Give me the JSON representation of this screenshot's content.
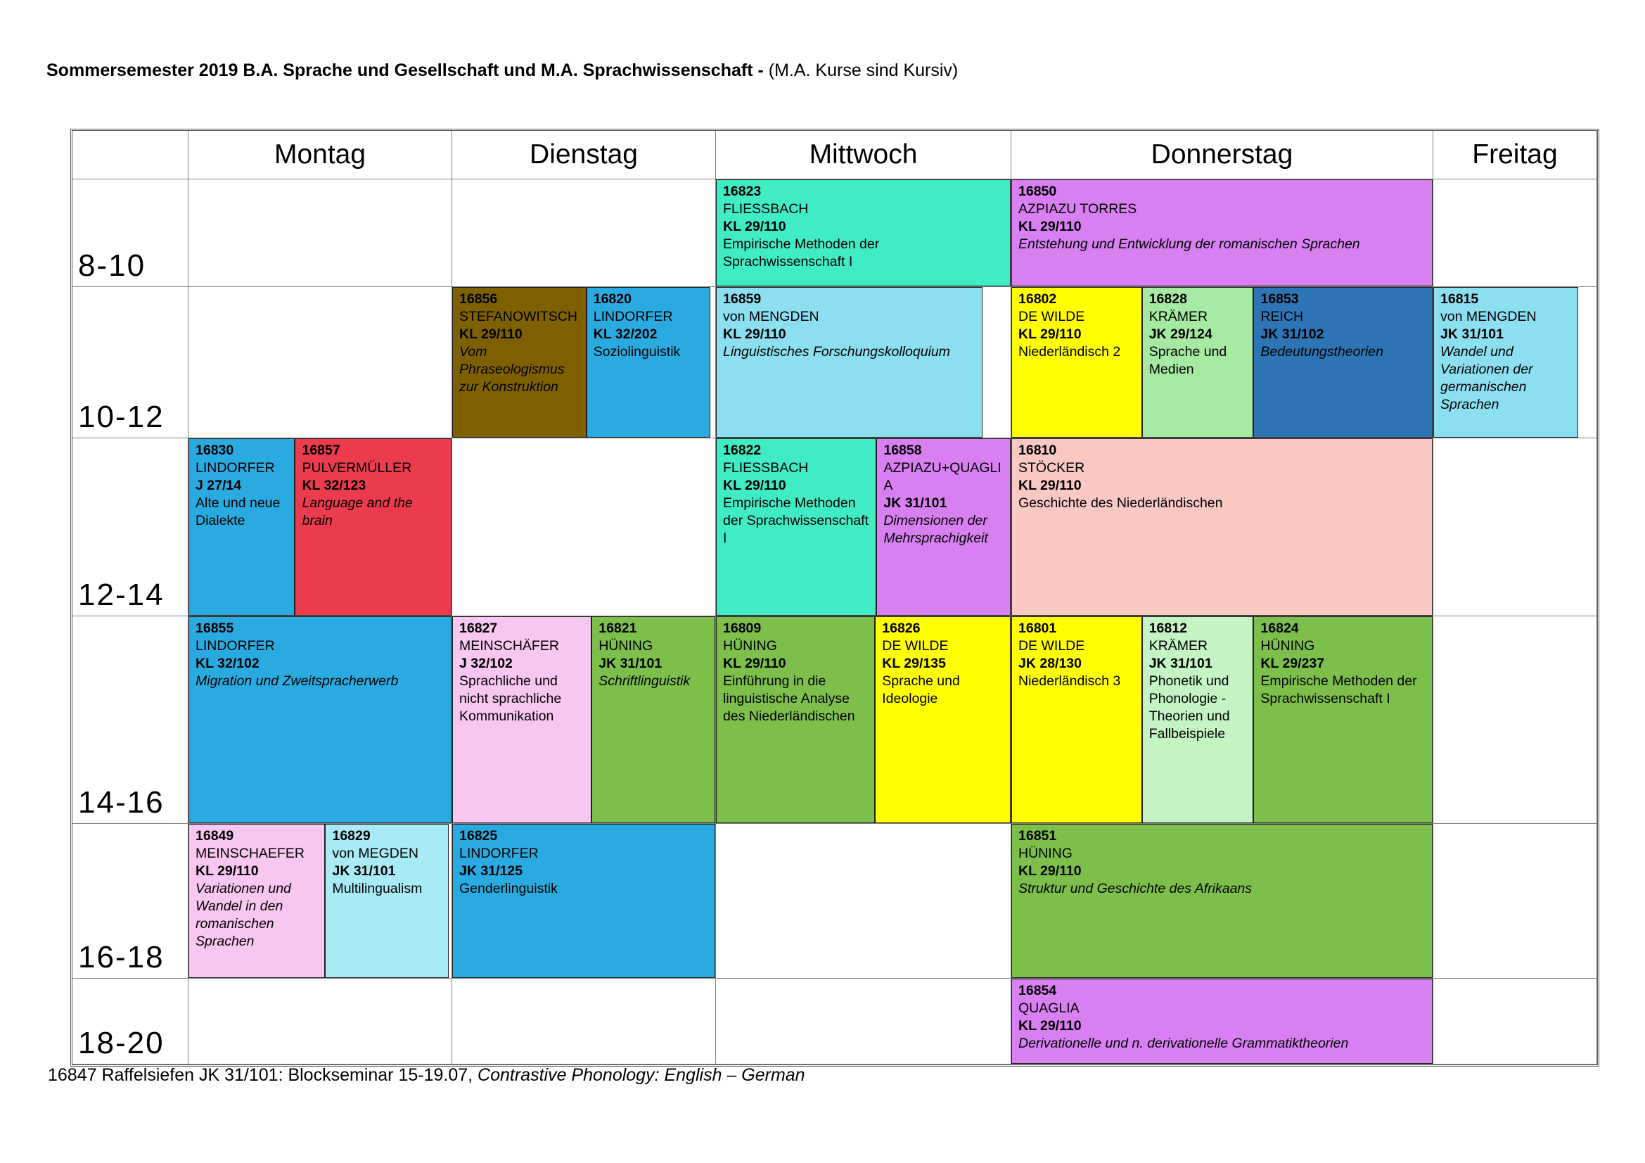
{
  "page": {
    "title_bold": "Sommersemester 2019 B.A. Sprache und Gesellschaft und M.A. Sprachwissenschaft -",
    "title_normal": "(M.A. Kurse sind Kursiv)",
    "footnote_normal": "16847 Raffelsiefen JK 31/101: Blockseminar 15-19.07,",
    "footnote_italic": "Contrastive Phonology: English – German"
  },
  "colors": {
    "turquoise": "#40ECC4",
    "violet": "#D880F2",
    "brown": "#7F6000",
    "blue": "#29ABE2",
    "skyblue": "#8BDFF0",
    "lightcyan": "#A9EBF5",
    "yellow": "#FFFF00",
    "lightgreen": "#A6E9A1",
    "palegreen": "#C4F4C4",
    "darkblue": "#2E75B6",
    "red": "#EC3B4D",
    "salmon": "#F9C8C3",
    "green": "#7DBF4B",
    "pink": "#F7C7F0"
  },
  "schedule": {
    "days": [
      "Montag",
      "Dienstag",
      "Mittwoch",
      "Donnerstag",
      "Freitag"
    ],
    "time_slots": [
      "8-10",
      "10-12",
      "12-14",
      "14-16",
      "16-18",
      "18-20"
    ],
    "courses": [
      {
        "id": "16823",
        "lecturer": "FLIESSBACH",
        "room": "KL 29/110",
        "title": "Empirische Methoden der Sprachwissenschaft I",
        "ma": false,
        "color": "turquoise",
        "day": "Mittwoch",
        "slot": "8-10",
        "width_pct": 100
      },
      {
        "id": "16850",
        "lecturer": "AZPIAZU TORRES",
        "room": "KL 29/110",
        "title": "Entstehung und Entwicklung der romanischen Sprachen",
        "ma": true,
        "color": "violet",
        "day": "Donnerstag",
        "slot": "8-10",
        "width_pct": 100
      },
      {
        "id": "16856",
        "lecturer": "STEFANOWITSCH",
        "room": "KL 29/110",
        "title": "Vom Phraseologismus zur Konstruktion",
        "ma": true,
        "color": "brown",
        "day": "Dienstag",
        "slot": "10-12",
        "width_pct": 51
      },
      {
        "id": "16820",
        "lecturer": "LINDORFER",
        "room": "KL 32/202",
        "title": "Soziolinguistik",
        "ma": false,
        "color": "blue",
        "day": "Dienstag",
        "slot": "10-12",
        "width_pct": 47
      },
      {
        "id": "16859",
        "lecturer": "von MENGDEN",
        "room": "KL 29/110",
        "title": "Linguistisches Forschungskolloquium",
        "ma": true,
        "color": "skyblue",
        "day": "Mittwoch",
        "slot": "10-12",
        "width_pct": 90.5
      },
      {
        "id": "16802",
        "lecturer": "DE WILDE",
        "room": "KL 29/110",
        "title": "Niederländisch 2",
        "ma": false,
        "color": "yellow",
        "day": "Donnerstag",
        "slot": "10-12",
        "width_pct": 31
      },
      {
        "id": "16828",
        "lecturer": "KRÄMER",
        "room": "JK 29/124",
        "title": "Sprache und Medien",
        "ma": false,
        "color": "lightgreen",
        "day": "Donnerstag",
        "slot": "10-12",
        "width_pct": 26.5
      },
      {
        "id": "16853",
        "lecturer": "REICH",
        "room": "JK 31/102",
        "title": "Bedeutungstheorien",
        "ma": true,
        "color": "darkblue",
        "day": "Donnerstag",
        "slot": "10-12",
        "width_pct": 42.5
      },
      {
        "id": "16815",
        "lecturer": "von MENGDEN",
        "room": "JK 31/101",
        "title": "Wandel und Variationen der germanischen Sprachen",
        "ma": true,
        "color": "skyblue",
        "day": "Freitag",
        "slot": "10-12",
        "width_pct": 89
      },
      {
        "id": "16830",
        "lecturer": "LINDORFER",
        "room": "J 27/14",
        "title": "Alte und neue Dialekte",
        "ma": false,
        "color": "blue",
        "day": "Montag",
        "slot": "12-14",
        "width_pct": 40.5
      },
      {
        "id": "16857",
        "lecturer": "PULVERMÜLLER",
        "room": "KL 32/123",
        "title": "Language and the brain",
        "ma": true,
        "color": "red",
        "day": "Montag",
        "slot": "12-14",
        "width_pct": 59.5
      },
      {
        "id": "16822",
        "lecturer": "FLIESSBACH",
        "room": "KL 29/110",
        "title": "Empirische Methoden der Sprachwissenschaft I",
        "ma": false,
        "color": "turquoise",
        "day": "Mittwoch",
        "slot": "12-14",
        "width_pct": 54.5
      },
      {
        "id": "16858",
        "lecturer": "AZPIAZU+QUAGLIA",
        "room": "JK 31/101",
        "title": "Dimensionen der Mehrsprachigkeit",
        "ma": true,
        "color": "violet",
        "day": "Mittwoch",
        "slot": "12-14",
        "width_pct": 45.5
      },
      {
        "id": "16810",
        "lecturer": "STÖCKER",
        "room": "KL 29/110",
        "title": "Geschichte des Niederländischen",
        "ma": false,
        "color": "salmon",
        "day": "Donnerstag",
        "slot": "12-14",
        "width_pct": 100
      },
      {
        "id": "16855",
        "lecturer": "LINDORFER",
        "room": "KL 32/102",
        "title": "Migration und Zweitspracherwerb",
        "ma": true,
        "color": "blue",
        "day": "Montag",
        "slot": "14-16",
        "width_pct": 100
      },
      {
        "id": "16827",
        "lecturer": "MEINSCHÄFER",
        "room": "J 32/102",
        "title": "Sprachliche und nicht sprachliche Kommunikation",
        "ma": false,
        "color": "pink",
        "day": "Dienstag",
        "slot": "14-16",
        "width_pct": 53
      },
      {
        "id": "16821",
        "lecturer": "HÜNING",
        "room": "JK 31/101",
        "title": "Schriftlinguistik",
        "ma": true,
        "color": "green",
        "day": "Dienstag",
        "slot": "14-16",
        "width_pct": 47
      },
      {
        "id": "16809",
        "lecturer": "HÜNING",
        "room": "KL 29/110",
        "title": "Einführung in die linguistische Analyse des Niederländischen",
        "ma": false,
        "color": "green",
        "day": "Mittwoch",
        "slot": "14-16",
        "width_pct": 54
      },
      {
        "id": "16826",
        "lecturer": "DE WILDE",
        "room": "KL 29/135",
        "title": "Sprache und Ideologie",
        "ma": false,
        "color": "yellow",
        "day": "Mittwoch",
        "slot": "14-16",
        "width_pct": 46
      },
      {
        "id": "16801",
        "lecturer": "DE WILDE",
        "room": "JK 28/130",
        "title": "Niederländisch 3",
        "ma": false,
        "color": "yellow",
        "day": "Donnerstag",
        "slot": "14-16",
        "width_pct": 31
      },
      {
        "id": "16812",
        "lecturer": "KRÄMER",
        "room": "JK 31/101",
        "title": "Phonetik und Phonologie - Theorien und Fallbeispiele",
        "ma": false,
        "color": "palegreen",
        "day": "Donnerstag",
        "slot": "14-16",
        "width_pct": 26.5
      },
      {
        "id": "16824",
        "lecturer": "HÜNING",
        "room": "KL 29/237",
        "title": "Empirische Methoden der Sprachwissenschaft I",
        "ma": false,
        "color": "green",
        "day": "Donnerstag",
        "slot": "14-16",
        "width_pct": 42.5
      },
      {
        "id": "16849",
        "lecturer": "MEINSCHAEFER",
        "room": "KL 29/110",
        "title": "Variationen und Wandel in den romanischen Sprachen",
        "ma": true,
        "color": "pink",
        "day": "Montag",
        "slot": "16-18",
        "width_pct": 52
      },
      {
        "id": "16829",
        "lecturer": "von MEGDEN",
        "room": "JK 31/101",
        "title": "Multilingualism",
        "ma": false,
        "color": "lightcyan",
        "day": "Montag",
        "slot": "16-18",
        "width_pct": 47
      },
      {
        "id": "16825",
        "lecturer": "LINDORFER",
        "room": "JK 31/125",
        "title": "Genderlinguistik",
        "ma": false,
        "color": "blue",
        "day": "Dienstag",
        "slot": "16-18",
        "width_pct": 100
      },
      {
        "id": "16851",
        "lecturer": "HÜNING",
        "room": "KL 29/110",
        "title": "Struktur und Geschichte des Afrikaans",
        "ma": true,
        "color": "green",
        "day": "Donnerstag",
        "slot": "16-18",
        "width_pct": 100
      },
      {
        "id": "16854",
        "lecturer": "QUAGLIA",
        "room": "KL 29/110",
        "title": "Derivationelle und n. derivationelle Grammatiktheorien",
        "ma": true,
        "color": "violet",
        "day": "Donnerstag",
        "slot": "18-20",
        "width_pct": 100
      }
    ]
  }
}
